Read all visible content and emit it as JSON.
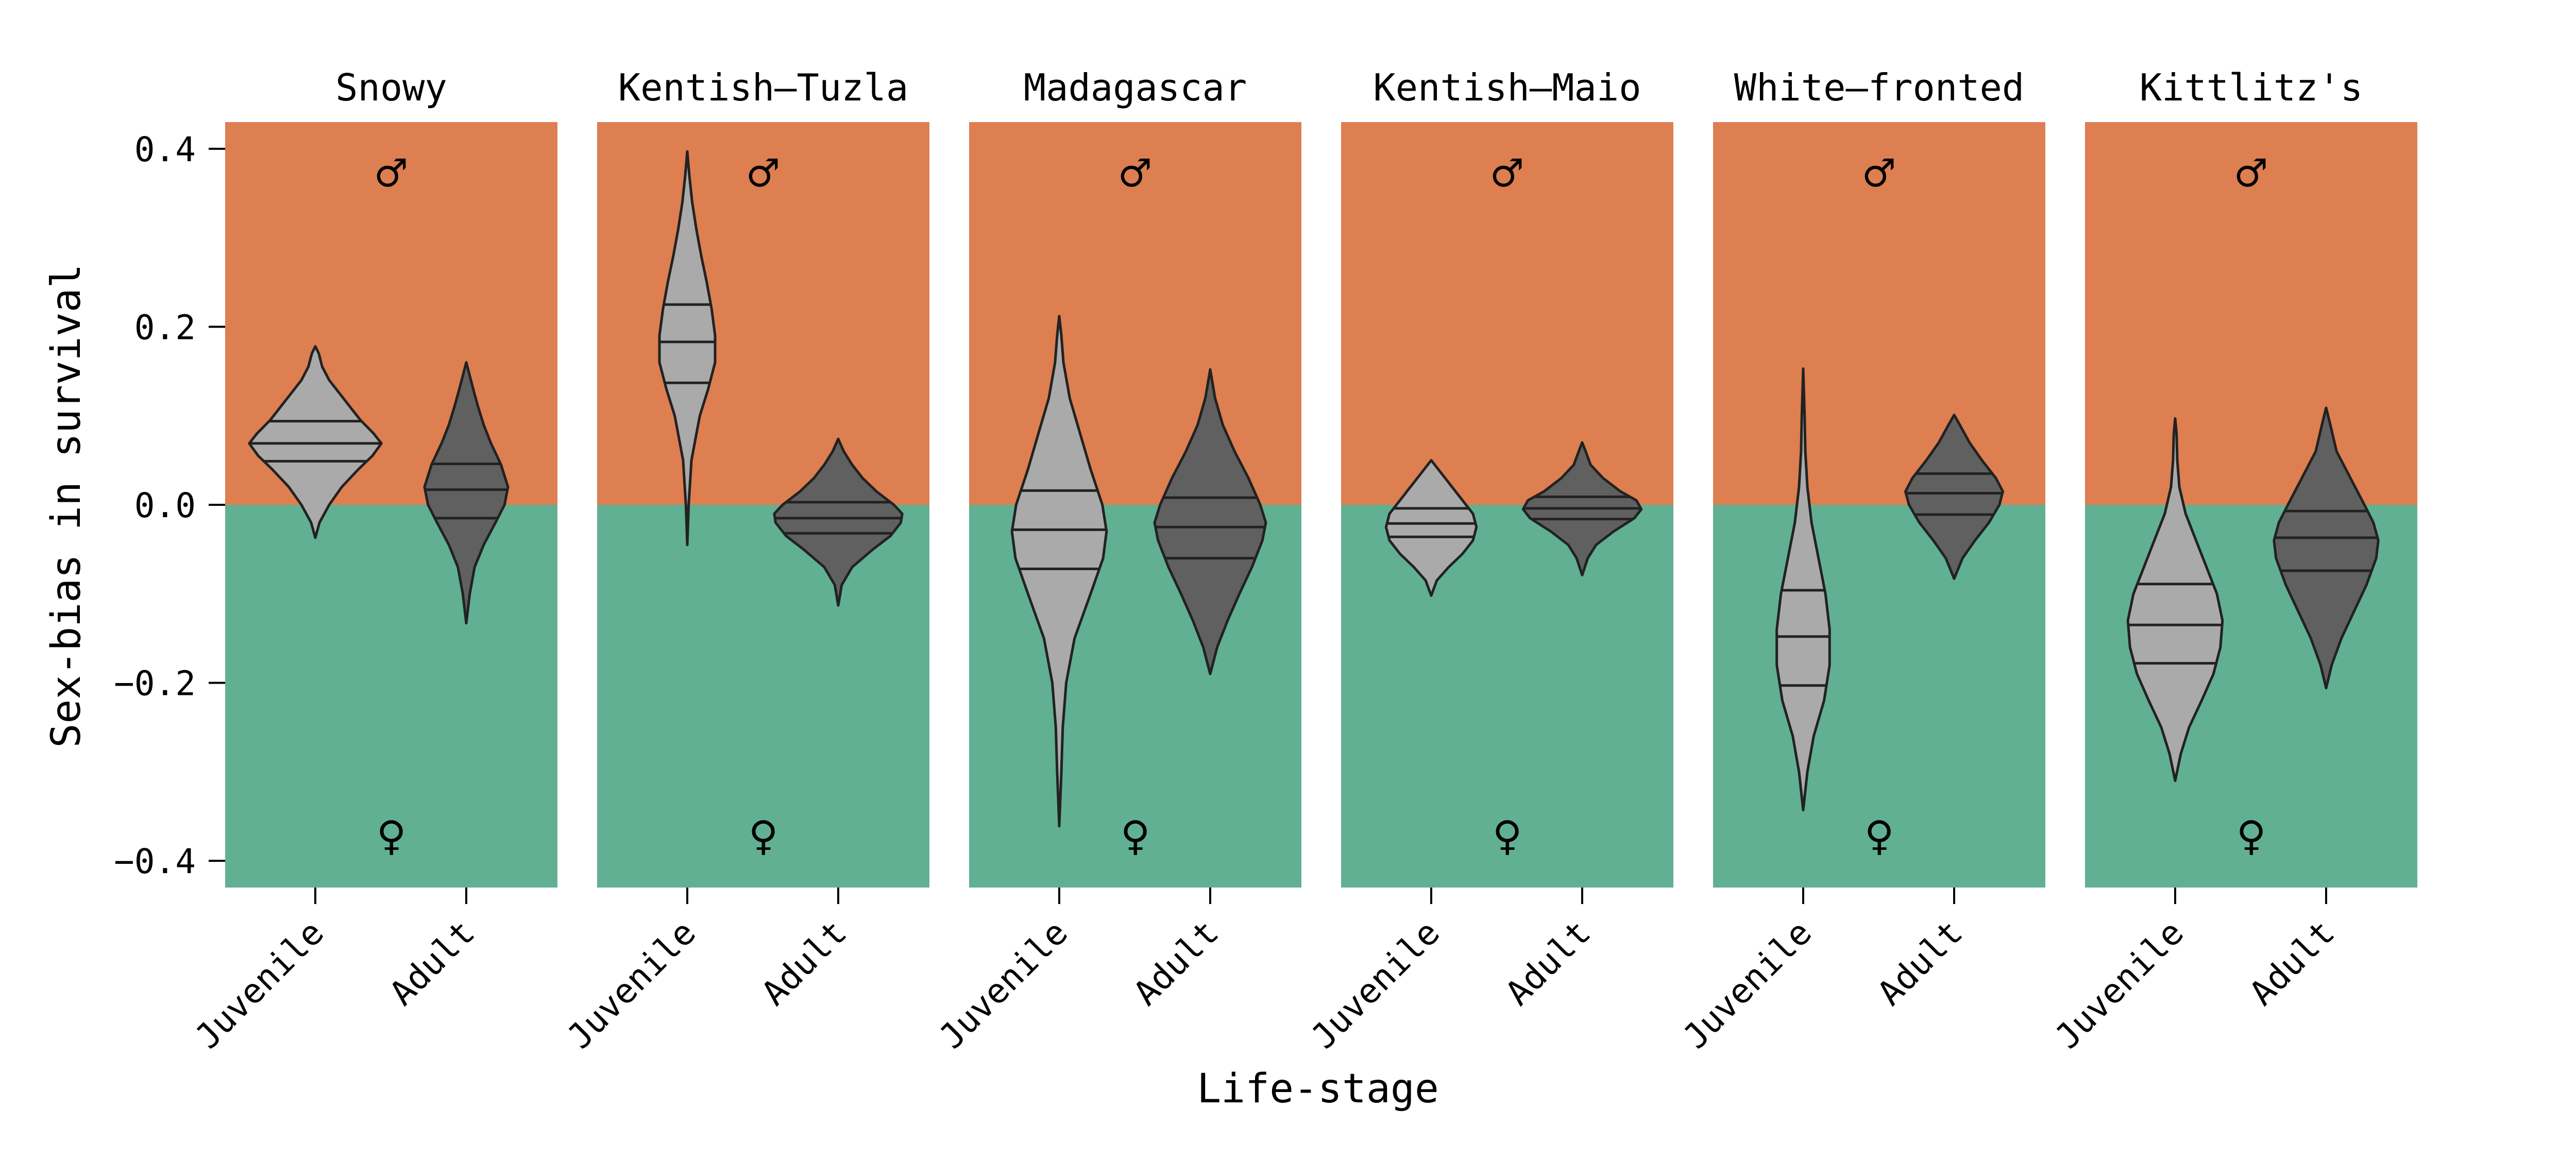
{
  "chart_data": {
    "type": "violin",
    "ylabel": "Sex-bias in survival",
    "xlabel": "Life-stage",
    "ylim": [
      -0.43,
      0.43
    ],
    "yticks": [
      0.4,
      0.2,
      0.0,
      -0.2,
      -0.4
    ],
    "ytick_labels": [
      "0.4",
      "0.2",
      "0.0",
      "−0.2",
      "−0.4"
    ],
    "categories": [
      "Juvenile",
      "Adult"
    ],
    "background_colors": {
      "male": "#dd7f50",
      "female": "#61b093"
    },
    "violin_colors": {
      "Juvenile": "#aaaaaa",
      "Adult": "#606060"
    },
    "male_symbol": "♂",
    "female_symbol": "♀",
    "panels": [
      {
        "title": "Snowy",
        "violins": [
          {
            "stage": "Juvenile",
            "min": -0.037,
            "max": 0.178,
            "q1": 0.049,
            "median": 0.069,
            "q3": 0.094,
            "profile": [
              [
                -0.037,
                0.0
              ],
              [
                -0.02,
                0.06
              ],
              [
                0.0,
                0.2
              ],
              [
                0.02,
                0.38
              ],
              [
                0.04,
                0.62
              ],
              [
                0.055,
                0.82
              ],
              [
                0.069,
                0.95
              ],
              [
                0.08,
                0.84
              ],
              [
                0.095,
                0.65
              ],
              [
                0.11,
                0.5
              ],
              [
                0.125,
                0.35
              ],
              [
                0.14,
                0.2
              ],
              [
                0.155,
                0.1
              ],
              [
                0.17,
                0.05
              ],
              [
                0.178,
                0.0
              ]
            ]
          },
          {
            "stage": "Adult",
            "min": -0.133,
            "max": 0.16,
            "q1": -0.015,
            "median": 0.017,
            "q3": 0.046,
            "profile": [
              [
                -0.133,
                0.0
              ],
              [
                -0.1,
                0.05
              ],
              [
                -0.07,
                0.12
              ],
              [
                -0.045,
                0.25
              ],
              [
                -0.02,
                0.42
              ],
              [
                0.0,
                0.55
              ],
              [
                0.02,
                0.6
              ],
              [
                0.045,
                0.5
              ],
              [
                0.07,
                0.35
              ],
              [
                0.09,
                0.25
              ],
              [
                0.11,
                0.17
              ],
              [
                0.13,
                0.1
              ],
              [
                0.145,
                0.05
              ],
              [
                0.16,
                0.0
              ]
            ]
          }
        ]
      },
      {
        "title": "Kentish–Tuzla",
        "violins": [
          {
            "stage": "Juvenile",
            "min": -0.045,
            "max": 0.397,
            "q1": 0.137,
            "median": 0.183,
            "q3": 0.225,
            "profile": [
              [
                -0.045,
                0.0
              ],
              [
                0.0,
                0.02
              ],
              [
                0.05,
                0.06
              ],
              [
                0.1,
                0.18
              ],
              [
                0.13,
                0.3
              ],
              [
                0.16,
                0.4
              ],
              [
                0.19,
                0.4
              ],
              [
                0.22,
                0.35
              ],
              [
                0.25,
                0.28
              ],
              [
                0.28,
                0.2
              ],
              [
                0.31,
                0.13
              ],
              [
                0.34,
                0.07
              ],
              [
                0.37,
                0.03
              ],
              [
                0.397,
                0.0
              ]
            ]
          },
          {
            "stage": "Adult",
            "min": -0.113,
            "max": 0.074,
            "q1": -0.032,
            "median": -0.015,
            "q3": 0.003,
            "profile": [
              [
                -0.113,
                0.0
              ],
              [
                -0.09,
                0.05
              ],
              [
                -0.07,
                0.2
              ],
              [
                -0.05,
                0.5
              ],
              [
                -0.035,
                0.75
              ],
              [
                -0.02,
                0.9
              ],
              [
                -0.01,
                0.92
              ],
              [
                0.0,
                0.8
              ],
              [
                0.015,
                0.55
              ],
              [
                0.03,
                0.35
              ],
              [
                0.045,
                0.2
              ],
              [
                0.06,
                0.08
              ],
              [
                0.074,
                0.0
              ]
            ]
          }
        ]
      },
      {
        "title": "Madagascar",
        "violins": [
          {
            "stage": "Juvenile",
            "min": -0.361,
            "max": 0.212,
            "q1": -0.072,
            "median": -0.028,
            "q3": 0.016,
            "profile": [
              [
                -0.361,
                0.0
              ],
              [
                -0.3,
                0.03
              ],
              [
                -0.25,
                0.05
              ],
              [
                -0.2,
                0.1
              ],
              [
                -0.15,
                0.22
              ],
              [
                -0.1,
                0.45
              ],
              [
                -0.06,
                0.63
              ],
              [
                -0.03,
                0.68
              ],
              [
                0.0,
                0.62
              ],
              [
                0.04,
                0.45
              ],
              [
                0.08,
                0.3
              ],
              [
                0.12,
                0.15
              ],
              [
                0.16,
                0.06
              ],
              [
                0.19,
                0.03
              ],
              [
                0.212,
                0.0
              ]
            ]
          },
          {
            "stage": "Adult",
            "min": -0.19,
            "max": 0.152,
            "q1": -0.06,
            "median": -0.025,
            "q3": 0.008,
            "profile": [
              [
                -0.19,
                0.0
              ],
              [
                -0.16,
                0.1
              ],
              [
                -0.13,
                0.25
              ],
              [
                -0.1,
                0.42
              ],
              [
                -0.07,
                0.6
              ],
              [
                -0.04,
                0.75
              ],
              [
                -0.02,
                0.8
              ],
              [
                0.0,
                0.72
              ],
              [
                0.03,
                0.55
              ],
              [
                0.06,
                0.35
              ],
              [
                0.09,
                0.18
              ],
              [
                0.12,
                0.07
              ],
              [
                0.152,
                0.0
              ]
            ]
          }
        ]
      },
      {
        "title": "Kentish–Maio",
        "violins": [
          {
            "stage": "Juvenile",
            "min": -0.102,
            "max": 0.05,
            "q1": -0.036,
            "median": -0.021,
            "q3": -0.004,
            "profile": [
              [
                -0.102,
                0.0
              ],
              [
                -0.085,
                0.08
              ],
              [
                -0.07,
                0.25
              ],
              [
                -0.055,
                0.45
              ],
              [
                -0.04,
                0.6
              ],
              [
                -0.025,
                0.65
              ],
              [
                -0.01,
                0.6
              ],
              [
                0.005,
                0.45
              ],
              [
                0.02,
                0.3
              ],
              [
                0.035,
                0.15
              ],
              [
                0.05,
                0.0
              ]
            ]
          },
          {
            "stage": "Adult",
            "min": -0.079,
            "max": 0.07,
            "q1": -0.016,
            "median": -0.004,
            "q3": 0.009,
            "profile": [
              [
                -0.079,
                0.0
              ],
              [
                -0.06,
                0.08
              ],
              [
                -0.045,
                0.2
              ],
              [
                -0.03,
                0.45
              ],
              [
                -0.015,
                0.75
              ],
              [
                -0.005,
                0.85
              ],
              [
                0.005,
                0.78
              ],
              [
                0.015,
                0.55
              ],
              [
                0.03,
                0.3
              ],
              [
                0.045,
                0.12
              ],
              [
                0.06,
                0.05
              ],
              [
                0.07,
                0.0
              ]
            ]
          }
        ]
      },
      {
        "title": "White–fronted",
        "violins": [
          {
            "stage": "Juvenile",
            "min": -0.343,
            "max": 0.153,
            "q1": -0.203,
            "median": -0.148,
            "q3": -0.096,
            "profile": [
              [
                -0.343,
                0.0
              ],
              [
                -0.3,
                0.06
              ],
              [
                -0.26,
                0.15
              ],
              [
                -0.22,
                0.3
              ],
              [
                -0.18,
                0.38
              ],
              [
                -0.14,
                0.38
              ],
              [
                -0.1,
                0.32
              ],
              [
                -0.06,
                0.22
              ],
              [
                -0.02,
                0.12
              ],
              [
                0.02,
                0.06
              ],
              [
                0.06,
                0.03
              ],
              [
                0.1,
                0.02
              ],
              [
                0.153,
                0.0
              ]
            ]
          },
          {
            "stage": "Adult",
            "min": -0.083,
            "max": 0.101,
            "q1": -0.011,
            "median": 0.013,
            "q3": 0.035,
            "profile": [
              [
                -0.083,
                0.0
              ],
              [
                -0.06,
                0.12
              ],
              [
                -0.04,
                0.3
              ],
              [
                -0.02,
                0.5
              ],
              [
                0.0,
                0.65
              ],
              [
                0.015,
                0.7
              ],
              [
                0.03,
                0.6
              ],
              [
                0.05,
                0.4
              ],
              [
                0.07,
                0.22
              ],
              [
                0.09,
                0.08
              ],
              [
                0.101,
                0.0
              ]
            ]
          }
        ]
      },
      {
        "title": "Kittlitz's",
        "violins": [
          {
            "stage": "Juvenile",
            "min": -0.31,
            "max": 0.097,
            "q1": -0.178,
            "median": -0.135,
            "q3": -0.089,
            "profile": [
              [
                -0.31,
                0.0
              ],
              [
                -0.28,
                0.08
              ],
              [
                -0.25,
                0.2
              ],
              [
                -0.22,
                0.38
              ],
              [
                -0.19,
                0.55
              ],
              [
                -0.16,
                0.65
              ],
              [
                -0.13,
                0.68
              ],
              [
                -0.1,
                0.6
              ],
              [
                -0.07,
                0.45
              ],
              [
                -0.04,
                0.3
              ],
              [
                -0.01,
                0.15
              ],
              [
                0.02,
                0.06
              ],
              [
                0.05,
                0.03
              ],
              [
                0.08,
                0.02
              ],
              [
                0.097,
                0.0
              ]
            ]
          },
          {
            "stage": "Adult",
            "min": -0.206,
            "max": 0.109,
            "q1": -0.074,
            "median": -0.037,
            "q3": -0.007,
            "profile": [
              [
                -0.206,
                0.0
              ],
              [
                -0.18,
                0.08
              ],
              [
                -0.15,
                0.22
              ],
              [
                -0.12,
                0.4
              ],
              [
                -0.09,
                0.58
              ],
              [
                -0.06,
                0.72
              ],
              [
                -0.04,
                0.75
              ],
              [
                -0.02,
                0.68
              ],
              [
                0.0,
                0.55
              ],
              [
                0.03,
                0.35
              ],
              [
                0.06,
                0.15
              ],
              [
                0.09,
                0.06
              ],
              [
                0.109,
                0.0
              ]
            ]
          }
        ]
      }
    ]
  }
}
